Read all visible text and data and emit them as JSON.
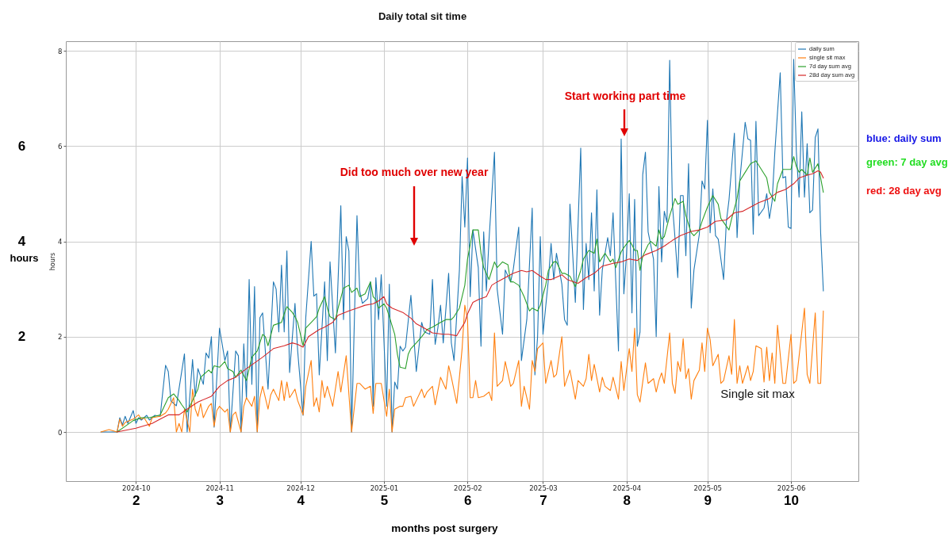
{
  "chart_data": {
    "type": "line",
    "title": "Daily total sit time",
    "ylabel": "hours",
    "y2label": "hours",
    "x2label": "months post surgery",
    "xlim": [
      "2024-09-05",
      "2025-06-26"
    ],
    "xticks": [
      "2024-10",
      "2024-11",
      "2024-12",
      "2025-01",
      "2025-02",
      "2025-03",
      "2025-04",
      "2025-05",
      "2025-06"
    ],
    "x2lim": [
      "2024-09-05",
      "2025-06-26"
    ],
    "x2ticks": [
      {
        "value": "2024-10",
        "label": "2"
      },
      {
        "value": "2024-11",
        "label": "3"
      },
      {
        "value": "2024-12",
        "label": "4"
      },
      {
        "value": "2025-01",
        "label": "5"
      },
      {
        "value": "2025-02",
        "label": "6"
      },
      {
        "value": "2025-03",
        "label": "7"
      },
      {
        "value": "2025-04",
        "label": "8"
      },
      {
        "value": "2025-05",
        "label": "9"
      },
      {
        "value": "2025-06",
        "label": "10"
      }
    ],
    "ylim": [
      -1.03,
      8.2
    ],
    "yticks": [
      0,
      2,
      4,
      6,
      8
    ],
    "y2lim": [
      -1.03,
      8.2
    ],
    "y2ticks": [
      2,
      4,
      6
    ],
    "grid": true,
    "legend": "top right",
    "series": [
      {
        "name": "daily sum",
        "color": "#1f77b4",
        "x": [
          "2024-09-18",
          "2024-09-24",
          "2024-09-25",
          "2024-09-26",
          "2024-09-27",
          "2024-09-28",
          "2024-09-30",
          "2024-10-01",
          "2024-10-02",
          "2024-10-03",
          "2024-10-05",
          "2024-10-06",
          "2024-10-08",
          "2024-10-10",
          "2024-10-12",
          "2024-10-13",
          "2024-10-14",
          "2024-10-16",
          "2024-10-19",
          "2024-10-20",
          "2024-10-22",
          "2024-10-23",
          "2024-10-24",
          "2024-10-26",
          "2024-10-27",
          "2024-10-28",
          "2024-10-29",
          "2024-10-30",
          "2024-11-01",
          "2024-11-03",
          "2024-11-04",
          "2024-11-05",
          "2024-11-07",
          "2024-11-08",
          "2024-11-09",
          "2024-11-10",
          "2024-11-11",
          "2024-11-12",
          "2024-11-13",
          "2024-11-14",
          "2024-11-15",
          "2024-11-16",
          "2024-11-17",
          "2024-11-19",
          "2024-11-21",
          "2024-11-22",
          "2024-11-23",
          "2024-11-24",
          "2024-11-25",
          "2024-11-26",
          "2024-11-27",
          "2024-11-29",
          "2024-11-30",
          "2024-12-02",
          "2024-12-03",
          "2024-12-05",
          "2024-12-06",
          "2024-12-07",
          "2024-12-08",
          "2024-12-10",
          "2024-12-11",
          "2024-12-12",
          "2024-12-14",
          "2024-12-16",
          "2024-12-17",
          "2024-12-18",
          "2024-12-19",
          "2024-12-20",
          "2024-12-22",
          "2024-12-23",
          "2024-12-24",
          "2024-12-26",
          "2024-12-27",
          "2024-12-28",
          "2024-12-29",
          "2024-12-30",
          "2024-12-31",
          "2025-01-02",
          "2025-01-03",
          "2025-01-04",
          "2025-01-05",
          "2025-01-06",
          "2025-01-07",
          "2025-01-08",
          "2025-01-09",
          "2025-01-11",
          "2025-01-13",
          "2025-01-15",
          "2025-01-16",
          "2025-01-18",
          "2025-01-19",
          "2025-01-20",
          "2025-01-21",
          "2025-01-22",
          "2025-01-23",
          "2025-01-25",
          "2025-01-26",
          "2025-01-27",
          "2025-01-29",
          "2025-01-30",
          "2025-01-31",
          "2025-02-01",
          "2025-02-02",
          "2025-02-03",
          "2025-02-05",
          "2025-02-06",
          "2025-02-07",
          "2025-02-08",
          "2025-02-09",
          "2025-02-11",
          "2025-02-12",
          "2025-02-14",
          "2025-02-15",
          "2025-02-17",
          "2025-02-18",
          "2025-02-20",
          "2025-02-21",
          "2025-02-23",
          "2025-02-25",
          "2025-02-26",
          "2025-02-27",
          "2025-02-28",
          "2025-03-01",
          "2025-03-03",
          "2025-03-04",
          "2025-03-05",
          "2025-03-06",
          "2025-03-08",
          "2025-03-09",
          "2025-03-10",
          "2025-03-11",
          "2025-03-13",
          "2025-03-15",
          "2025-03-16",
          "2025-03-17",
          "2025-03-18",
          "2025-03-19",
          "2025-03-20",
          "2025-03-21",
          "2025-03-22",
          "2025-03-23",
          "2025-03-25",
          "2025-03-26",
          "2025-03-27",
          "2025-03-29",
          "2025-03-30",
          "2025-03-31",
          "2025-04-01",
          "2025-04-02",
          "2025-04-03",
          "2025-04-04",
          "2025-04-05",
          "2025-04-06",
          "2025-04-07",
          "2025-04-08",
          "2025-04-09",
          "2025-04-11",
          "2025-04-12",
          "2025-04-13",
          "2025-04-14",
          "2025-04-15",
          "2025-04-16",
          "2025-04-17",
          "2025-04-18",
          "2025-04-19",
          "2025-04-20",
          "2025-04-21",
          "2025-04-22",
          "2025-04-23",
          "2025-04-24",
          "2025-04-25",
          "2025-04-26",
          "2025-04-28",
          "2025-04-29",
          "2025-04-30",
          "2025-05-01",
          "2025-05-02",
          "2025-05-03",
          "2025-05-04",
          "2025-05-05",
          "2025-05-07",
          "2025-05-08",
          "2025-05-09",
          "2025-05-11",
          "2025-05-12",
          "2025-05-13",
          "2025-05-15",
          "2025-05-16",
          "2025-05-17",
          "2025-05-18",
          "2025-05-19",
          "2025-05-20",
          "2025-05-22",
          "2025-05-23",
          "2025-05-24",
          "2025-05-25",
          "2025-05-26",
          "2025-05-28",
          "2025-05-29",
          "2025-05-30",
          "2025-05-31",
          "2025-06-01",
          "2025-06-02",
          "2025-06-03",
          "2025-06-04",
          "2025-06-05",
          "2025-06-06",
          "2025-06-07",
          "2025-06-08",
          "2025-06-09",
          "2025-06-10",
          "2025-06-11",
          "2025-06-12",
          "2025-06-13"
        ],
        "values": [
          0,
          0,
          0.3,
          0.15,
          0.33,
          0.18,
          0.45,
          0.18,
          0.3,
          0.25,
          0.35,
          0.25,
          0.35,
          0.33,
          1.4,
          1.27,
          0.65,
          0.55,
          1.64,
          0,
          1.52,
          0.75,
          1.33,
          1.0,
          1.66,
          1.55,
          2.0,
          0.1,
          2.18,
          1.5,
          1.7,
          0,
          1.7,
          1.6,
          0,
          1.85,
          0.7,
          3.2,
          1.0,
          3.05,
          0,
          2.4,
          2.5,
          0.9,
          3.15,
          3.0,
          2.1,
          3.5,
          2.1,
          3.8,
          1.25,
          2.7,
          1.7,
          0.35,
          2.4,
          4.0,
          2.85,
          2.9,
          1.2,
          3.15,
          1.5,
          3.57,
          1.66,
          4.75,
          2.36,
          4.1,
          3.8,
          0,
          4.54,
          2.96,
          2.7,
          2.8,
          3.15,
          0.54,
          3.24,
          2.36,
          3.3,
          0.54,
          3.1,
          0,
          1.05,
          0.9,
          1.8,
          1.7,
          1.78,
          2.87,
          1.27,
          2.3,
          2.1,
          2.05,
          3.2,
          1.84,
          2.18,
          2.66,
          1.87,
          3.33,
          1.87,
          1.5,
          3.4,
          5.36,
          4.3,
          5.75,
          2.84,
          4.24,
          3.45,
          1.8,
          4.2,
          2.96,
          4.05,
          5.87,
          3.0,
          2.05,
          3.4,
          3.15,
          3.42,
          4.3,
          1.5,
          2.36,
          4.7,
          1.2,
          2.0,
          4.1,
          2.05,
          3.2,
          3.96,
          3.2,
          3.75,
          3.1,
          2.36,
          2.24,
          4.78,
          2.72,
          5.96,
          2.57,
          3.96,
          3.2,
          4.6,
          2.96,
          5.08,
          2.45,
          3.4,
          4.08,
          3.7,
          4.6,
          1.7,
          6.15,
          2.9,
          3.75,
          5.0,
          2.5,
          4.88,
          1.8,
          2.1,
          5.4,
          5.87,
          4.2,
          3.63,
          2.0,
          5.15,
          3.57,
          4.63,
          4.4,
          7.8,
          4.78,
          4.05,
          3.24,
          4.96,
          4.96,
          3.7,
          5.63,
          2.6,
          3.4,
          4.15,
          5.27,
          5.1,
          6.54,
          4.18,
          5.1,
          4.12,
          4.05,
          3.2,
          4.4,
          4.87,
          6.27,
          4.08,
          5.27,
          6.5,
          6.15,
          6.12,
          4.15,
          6.52,
          4.54,
          4.7,
          5.0,
          4.48,
          4.84,
          5.87,
          7.54,
          5.33,
          5.36,
          4.3,
          4.27,
          7.82,
          5.87,
          4.93,
          6.72,
          4.93,
          6.05,
          4.6,
          4.66,
          6.18,
          6.36,
          4.18,
          2.96
        ]
      },
      {
        "name": "single sit max",
        "color": "#ff7f0e",
        "x": [
          "2024-09-18",
          "2024-09-21",
          "2024-09-24",
          "2024-09-25",
          "2024-09-26",
          "2024-09-27",
          "2024-09-30",
          "2024-10-02",
          "2024-10-03",
          "2024-10-04",
          "2024-10-06",
          "2024-10-07",
          "2024-10-10",
          "2024-10-12",
          "2024-10-13",
          "2024-10-15",
          "2024-10-16",
          "2024-10-17",
          "2024-10-18",
          "2024-10-19",
          "2024-10-21",
          "2024-10-22",
          "2024-10-23",
          "2024-10-24",
          "2024-10-25",
          "2024-10-26",
          "2024-10-28",
          "2024-10-29",
          "2024-10-30",
          "2024-10-31",
          "2024-11-01",
          "2024-11-03",
          "2024-11-04",
          "2024-11-05",
          "2024-11-06",
          "2024-11-07",
          "2024-11-09",
          "2024-11-10",
          "2024-11-11",
          "2024-11-13",
          "2024-11-14",
          "2024-11-15",
          "2024-11-16",
          "2024-11-17",
          "2024-11-19",
          "2024-11-20",
          "2024-11-21",
          "2024-11-23",
          "2024-11-24",
          "2024-11-25",
          "2024-11-26",
          "2024-11-27",
          "2024-11-29",
          "2024-11-30",
          "2024-12-02",
          "2024-12-03",
          "2024-12-05",
          "2024-12-06",
          "2024-12-07",
          "2024-12-08",
          "2024-12-09",
          "2024-12-10",
          "2024-12-11",
          "2024-12-13",
          "2024-12-15",
          "2024-12-16",
          "2024-12-18",
          "2024-12-20",
          "2024-12-22",
          "2024-12-23",
          "2024-12-25",
          "2024-12-27",
          "2024-12-28",
          "2024-12-29",
          "2024-12-31",
          "2025-01-02",
          "2025-01-03",
          "2025-01-04",
          "2025-01-05",
          "2025-01-07",
          "2025-01-08",
          "2025-01-09",
          "2025-01-11",
          "2025-01-12",
          "2025-01-13",
          "2025-01-15",
          "2025-01-16",
          "2025-01-17",
          "2025-01-19",
          "2025-01-20",
          "2025-01-22",
          "2025-01-24",
          "2025-01-25",
          "2025-01-26",
          "2025-01-28",
          "2025-01-29",
          "2025-01-30",
          "2025-01-31",
          "2025-02-01",
          "2025-02-02",
          "2025-02-03",
          "2025-02-04",
          "2025-02-05",
          "2025-02-07",
          "2025-02-09",
          "2025-02-10",
          "2025-02-11",
          "2025-02-12",
          "2025-02-14",
          "2025-02-15",
          "2025-02-17",
          "2025-02-18",
          "2025-02-20",
          "2025-02-21",
          "2025-02-22",
          "2025-02-24",
          "2025-02-25",
          "2025-02-26",
          "2025-02-27",
          "2025-03-01",
          "2025-03-02",
          "2025-03-04",
          "2025-03-05",
          "2025-03-06",
          "2025-03-08",
          "2025-03-09",
          "2025-03-11",
          "2025-03-13",
          "2025-03-14",
          "2025-03-16",
          "2025-03-17",
          "2025-03-18",
          "2025-03-19",
          "2025-03-20",
          "2025-03-22",
          "2025-03-23",
          "2025-03-24",
          "2025-03-26",
          "2025-03-27",
          "2025-03-29",
          "2025-03-30",
          "2025-03-31",
          "2025-04-02",
          "2025-04-03",
          "2025-04-04",
          "2025-04-05",
          "2025-04-06",
          "2025-04-07",
          "2025-04-08",
          "2025-04-09",
          "2025-04-11",
          "2025-04-12",
          "2025-04-13",
          "2025-04-14",
          "2025-04-15",
          "2025-04-17",
          "2025-04-18",
          "2025-04-19",
          "2025-04-20",
          "2025-04-21",
          "2025-04-22",
          "2025-04-23",
          "2025-04-24",
          "2025-04-25",
          "2025-04-26",
          "2025-04-28",
          "2025-04-29",
          "2025-04-30",
          "2025-05-01",
          "2025-05-02",
          "2025-05-03",
          "2025-05-05",
          "2025-05-06",
          "2025-05-07",
          "2025-05-09",
          "2025-05-10",
          "2025-05-11",
          "2025-05-12",
          "2025-05-13",
          "2025-05-14",
          "2025-05-16",
          "2025-05-17",
          "2025-05-18",
          "2025-05-19",
          "2025-05-21",
          "2025-05-22",
          "2025-05-23",
          "2025-05-24",
          "2025-05-25",
          "2025-05-26",
          "2025-05-27",
          "2025-05-29",
          "2025-05-30",
          "2025-06-01",
          "2025-06-02",
          "2025-06-03",
          "2025-06-06",
          "2025-06-07",
          "2025-06-08",
          "2025-06-10",
          "2025-06-11",
          "2025-06-12",
          "2025-06-13"
        ],
        "values": [
          0,
          0.05,
          0,
          0.27,
          0.12,
          0.2,
          0.27,
          0.36,
          0.27,
          0.3,
          0.12,
          0.3,
          0.33,
          0.4,
          0.48,
          0.72,
          0,
          0.18,
          0,
          0.48,
          0,
          0.9,
          0.48,
          0.33,
          0.6,
          0.3,
          0.54,
          0.6,
          0.12,
          0.45,
          0.54,
          0.42,
          0.48,
          0,
          0.36,
          0.42,
          0,
          0.54,
          0.72,
          0.54,
          0.75,
          0,
          0.72,
          0.96,
          0.48,
          0.78,
          0.9,
          0.66,
          1.08,
          0.66,
          1.05,
          0.72,
          0.9,
          0.66,
          0.36,
          0.96,
          1.5,
          0.54,
          0.72,
          0.42,
          1.08,
          0.72,
          0.96,
          0.54,
          1.27,
          0.84,
          1.6,
          0,
          1.02,
          1.02,
          0.9,
          0.96,
          0.39,
          1.02,
          1.02,
          0.33,
          0.9,
          0,
          0.48,
          0.54,
          0.54,
          0.72,
          0.75,
          0.54,
          0.66,
          0.9,
          0.72,
          0.84,
          0.96,
          0.57,
          1.15,
          0.9,
          1.39,
          1.15,
          0.6,
          1.15,
          1.75,
          2.66,
          2.36,
          0.72,
          0.72,
          1.08,
          0.72,
          0.75,
          0.84,
          0.66,
          2.08,
          0.96,
          1.08,
          1.48,
          0.96,
          1.02,
          1.5,
          0.54,
          0.96,
          0.48,
          1.5,
          1.27,
          1.75,
          1.87,
          1.02,
          1.5,
          1.15,
          1.21,
          2.0,
          0.96,
          1.3,
          0.69,
          1.08,
          0.96,
          1.12,
          1.63,
          1.08,
          1.42,
          0.84,
          1.15,
          0.96,
          0.87,
          1.15,
          0.69,
          1.48,
          0.87,
          1.75,
          1.27,
          2.18,
          0.78,
          0.63,
          1.05,
          1.45,
          1.02,
          1.12,
          0.84,
          1.08,
          1.24,
          1.02,
          2.08,
          1.02,
          0.81,
          1.48,
          1.27,
          1.96,
          1.12,
          1.33,
          0.69,
          1.08,
          1.3,
          1.87,
          1.27,
          2.18,
          1.94,
          1.39,
          1.63,
          1.02,
          1.08,
          1.6,
          1.21,
          2.36,
          1.02,
          1.39,
          1.02,
          1.39,
          1.08,
          1.27,
          1.81,
          1.75,
          1.05,
          1.78,
          1.08,
          1.66,
          1.02,
          2.24,
          1.02,
          1.02,
          2.05,
          1.02,
          1.08,
          2.6,
          1.21,
          1.02,
          2.5,
          1.02,
          1.02,
          2.54
        ]
      },
      {
        "name": "7d day sum avg",
        "color": "#2ca02c",
        "x": [
          "2024-09-24",
          "2024-09-27",
          "2024-09-30",
          "2024-10-03",
          "2024-10-06",
          "2024-10-10",
          "2024-10-12",
          "2024-10-13",
          "2024-10-15",
          "2024-10-17",
          "2024-10-18",
          "2024-10-20",
          "2024-10-22",
          "2024-10-24",
          "2024-10-25",
          "2024-10-28",
          "2024-10-29",
          "2024-10-30",
          "2024-11-01",
          "2024-11-03",
          "2024-11-04",
          "2024-11-06",
          "2024-11-07",
          "2024-11-09",
          "2024-11-11",
          "2024-11-13",
          "2024-11-15",
          "2024-11-17",
          "2024-11-18",
          "2024-11-19",
          "2024-11-21",
          "2024-11-24",
          "2024-11-25",
          "2024-11-26",
          "2024-11-28",
          "2024-11-29",
          "2024-11-30",
          "2024-12-02",
          "2024-12-03",
          "2024-12-05",
          "2024-12-07",
          "2024-12-08",
          "2024-12-10",
          "2024-12-11",
          "2024-12-12",
          "2024-12-14",
          "2024-12-15",
          "2024-12-17",
          "2024-12-19",
          "2024-12-20",
          "2024-12-22",
          "2024-12-23",
          "2024-12-25",
          "2024-12-27",
          "2024-12-28",
          "2024-12-29",
          "2024-12-30",
          "2025-01-01",
          "2025-01-02",
          "2025-01-03",
          "2025-01-05",
          "2025-01-06",
          "2025-01-07",
          "2025-01-09",
          "2025-01-10",
          "2025-01-11",
          "2025-01-13",
          "2025-01-15",
          "2025-01-17",
          "2025-01-19",
          "2025-01-22",
          "2025-01-24",
          "2025-01-26",
          "2025-01-27",
          "2025-01-29",
          "2025-01-31",
          "2025-02-01",
          "2025-02-02",
          "2025-02-03",
          "2025-02-05",
          "2025-02-06",
          "2025-02-07",
          "2025-02-09",
          "2025-02-10",
          "2025-02-11",
          "2025-02-12",
          "2025-02-14",
          "2025-02-16",
          "2025-02-17",
          "2025-02-18",
          "2025-02-20",
          "2025-02-22",
          "2025-02-24",
          "2025-02-25",
          "2025-02-27",
          "2025-02-28",
          "2025-03-02",
          "2025-03-03",
          "2025-03-05",
          "2025-03-06",
          "2025-03-08",
          "2025-03-09",
          "2025-03-11",
          "2025-03-13",
          "2025-03-15",
          "2025-03-16",
          "2025-03-18",
          "2025-03-20",
          "2025-03-21",
          "2025-03-22",
          "2025-03-24",
          "2025-03-26",
          "2025-03-27",
          "2025-03-28",
          "2025-03-30",
          "2025-03-31",
          "2025-04-02",
          "2025-04-03",
          "2025-04-04",
          "2025-04-05",
          "2025-04-06",
          "2025-04-07",
          "2025-04-09",
          "2025-04-10",
          "2025-04-12",
          "2025-04-13",
          "2025-04-14",
          "2025-04-15",
          "2025-04-17",
          "2025-04-19",
          "2025-04-20",
          "2025-04-22",
          "2025-04-23",
          "2025-04-25",
          "2025-04-26",
          "2025-04-28",
          "2025-04-29",
          "2025-05-01",
          "2025-05-03",
          "2025-05-05",
          "2025-05-06",
          "2025-05-09",
          "2025-05-10",
          "2025-05-12",
          "2025-05-13",
          "2025-05-15",
          "2025-05-17",
          "2025-05-19",
          "2025-05-21",
          "2025-05-23",
          "2025-05-24",
          "2025-05-26",
          "2025-05-27",
          "2025-05-29",
          "2025-05-31",
          "2025-06-01",
          "2025-06-02",
          "2025-06-03",
          "2025-06-04",
          "2025-06-05",
          "2025-06-07",
          "2025-06-08",
          "2025-06-09",
          "2025-06-11",
          "2025-06-12",
          "2025-06-13"
        ],
        "values": [
          0,
          0.12,
          0.24,
          0.3,
          0.3,
          0.36,
          0.6,
          0.72,
          0.8,
          0.66,
          0.57,
          0.42,
          0.66,
          0.9,
          1.15,
          1.3,
          1.24,
          1.39,
          1.36,
          1.48,
          1.33,
          1.27,
          1.15,
          1.3,
          1.08,
          1.57,
          1.7,
          2.05,
          2.0,
          1.81,
          2.24,
          2.3,
          2.48,
          2.63,
          2.51,
          2.42,
          2.3,
          1.81,
          2.18,
          2.3,
          2.42,
          2.6,
          2.84,
          2.6,
          2.42,
          2.36,
          2.6,
          3.02,
          3.08,
          2.93,
          3.02,
          2.84,
          2.9,
          3.15,
          2.84,
          2.78,
          2.6,
          2.69,
          2.6,
          2.42,
          2.05,
          1.63,
          1.36,
          1.33,
          1.63,
          1.75,
          1.87,
          2.0,
          2.15,
          2.2,
          2.3,
          2.36,
          2.36,
          2.42,
          2.6,
          3.08,
          3.63,
          3.93,
          4.24,
          4.24,
          3.75,
          3.45,
          3.2,
          3.39,
          3.57,
          3.45,
          3.57,
          3.51,
          3.15,
          3.15,
          3.08,
          2.84,
          2.54,
          2.6,
          2.54,
          2.66,
          3.08,
          3.39,
          3.57,
          3.57,
          3.33,
          3.33,
          3.27,
          3.05,
          3.39,
          3.63,
          3.81,
          3.75,
          4.05,
          3.57,
          3.75,
          3.57,
          3.63,
          3.45,
          3.78,
          3.87,
          4.02,
          3.93,
          3.81,
          3.81,
          3.39,
          3.69,
          3.93,
          4.0,
          3.9,
          4.24,
          4.05,
          4.1,
          4.54,
          4.9,
          4.78,
          4.84,
          4.54,
          4.18,
          4.12,
          4.24,
          4.42,
          4.72,
          4.96,
          4.78,
          4.48,
          4.24,
          4.48,
          4.9,
          5.27,
          5.45,
          5.63,
          5.69,
          5.51,
          5.33,
          5.03,
          4.84,
          5.21,
          5.51,
          5.51,
          5.51,
          5.78,
          5.57,
          5.45,
          5.51,
          5.39,
          5.75,
          5.45,
          5.63,
          5.33,
          5.03
        ]
      },
      {
        "name": "28d day sum avg",
        "color": "#d62728",
        "x": [
          "2024-09-24",
          "2024-10-01",
          "2024-10-07",
          "2024-10-10",
          "2024-10-13",
          "2024-10-17",
          "2024-10-20",
          "2024-10-24",
          "2024-10-29",
          "2024-11-01",
          "2024-11-04",
          "2024-11-07",
          "2024-11-11",
          "2024-11-14",
          "2024-11-17",
          "2024-11-21",
          "2024-11-25",
          "2024-11-28",
          "2024-11-30",
          "2024-12-02",
          "2024-12-04",
          "2024-12-08",
          "2024-12-10",
          "2024-12-13",
          "2024-12-15",
          "2024-12-19",
          "2024-12-22",
          "2024-12-25",
          "2024-12-28",
          "2024-12-30",
          "2025-01-01",
          "2025-01-02",
          "2025-01-04",
          "2025-01-08",
          "2025-01-11",
          "2025-01-13",
          "2025-01-16",
          "2025-01-19",
          "2025-01-23",
          "2025-01-25",
          "2025-01-28",
          "2025-01-29",
          "2025-01-31",
          "2025-02-01",
          "2025-02-03",
          "2025-02-05",
          "2025-02-08",
          "2025-02-10",
          "2025-02-12",
          "2025-02-15",
          "2025-02-18",
          "2025-02-21",
          "2025-02-23",
          "2025-02-25",
          "2025-02-28",
          "2025-03-02",
          "2025-03-04",
          "2025-03-08",
          "2025-03-10",
          "2025-03-14",
          "2025-03-17",
          "2025-03-20",
          "2025-03-23",
          "2025-03-27",
          "2025-03-30",
          "2025-04-02",
          "2025-04-05",
          "2025-04-08",
          "2025-04-12",
          "2025-04-15",
          "2025-04-18",
          "2025-04-21",
          "2025-04-25",
          "2025-04-28",
          "2025-05-01",
          "2025-05-04",
          "2025-05-08",
          "2025-05-11",
          "2025-05-14",
          "2025-05-17",
          "2025-05-20",
          "2025-05-24",
          "2025-05-27",
          "2025-05-30",
          "2025-06-02",
          "2025-06-04",
          "2025-06-07",
          "2025-06-09",
          "2025-06-11",
          "2025-06-12",
          "2025-06-13"
        ],
        "values": [
          0,
          0.08,
          0.18,
          0.27,
          0.36,
          0.36,
          0.48,
          0.63,
          0.75,
          0.96,
          1.08,
          1.15,
          1.33,
          1.45,
          1.57,
          1.75,
          1.81,
          1.87,
          1.84,
          1.78,
          2.0,
          2.15,
          2.2,
          2.3,
          2.45,
          2.54,
          2.6,
          2.66,
          2.69,
          2.75,
          2.84,
          2.69,
          2.6,
          2.51,
          2.39,
          2.27,
          2.18,
          2.08,
          2.05,
          2.05,
          2.02,
          2.12,
          2.3,
          2.48,
          2.72,
          2.78,
          2.84,
          3.08,
          3.15,
          3.24,
          3.33,
          3.39,
          3.36,
          3.39,
          3.27,
          3.2,
          3.2,
          3.3,
          3.2,
          3.12,
          3.24,
          3.33,
          3.48,
          3.54,
          3.57,
          3.63,
          3.6,
          3.72,
          3.81,
          3.9,
          4.02,
          4.12,
          4.21,
          4.24,
          4.3,
          4.42,
          4.45,
          4.6,
          4.63,
          4.72,
          4.81,
          4.9,
          5.03,
          5.09,
          5.21,
          5.33,
          5.39,
          5.42,
          5.48,
          5.45,
          5.33
        ]
      }
    ],
    "annotations": [
      "Did too much over new year",
      "Start working part time",
      "Single sit max",
      "blue: daily sum",
      "green: 7 day avg",
      "red: 28 day avg"
    ]
  }
}
